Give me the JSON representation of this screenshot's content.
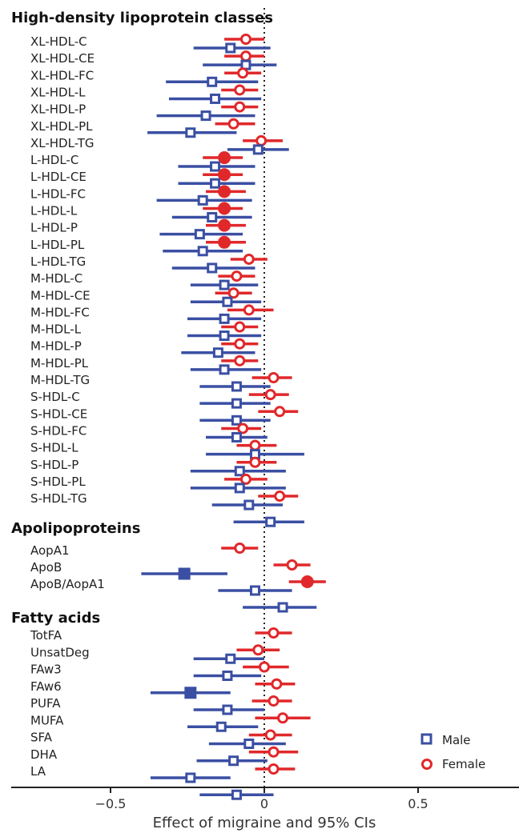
{
  "chart_data": {
    "type": "forest",
    "xlabel": "Effect of migraine and 95% CIs",
    "xlim": [
      -0.82,
      0.82
    ],
    "xticks": [
      -0.5,
      0,
      0.5
    ],
    "xtick_labels": [
      "−0.5",
      "0",
      "0.5"
    ],
    "reference_line": 0,
    "colors": {
      "Male": "#3a4fa3",
      "Female": "#e0282b"
    },
    "legend": {
      "position": "bottom-right",
      "entries": [
        {
          "name": "Male",
          "marker": "square"
        },
        {
          "name": "Female",
          "marker": "circle"
        }
      ]
    },
    "sections": [
      {
        "title": "High-density lipoprotein classes",
        "rows": [
          {
            "label": "XL-HDL-C",
            "male": [
              -0.11,
              -0.23,
              0.02,
              false
            ],
            "female": [
              -0.06,
              -0.13,
              0.0,
              false
            ]
          },
          {
            "label": "XL-HDL-CE",
            "male": [
              -0.06,
              -0.2,
              0.04,
              false
            ],
            "female": [
              -0.06,
              -0.13,
              0.0,
              false
            ]
          },
          {
            "label": "XL-HDL-FC",
            "male": [
              -0.17,
              -0.32,
              -0.02,
              false
            ],
            "female": [
              -0.07,
              -0.13,
              -0.01,
              false
            ]
          },
          {
            "label": "XL-HDL-L",
            "male": [
              -0.16,
              -0.31,
              -0.01,
              false
            ],
            "female": [
              -0.08,
              -0.14,
              -0.02,
              false
            ]
          },
          {
            "label": "XL-HDL-P",
            "male": [
              -0.19,
              -0.35,
              -0.03,
              false
            ],
            "female": [
              -0.08,
              -0.14,
              -0.02,
              false
            ]
          },
          {
            "label": "XL-HDL-PL",
            "male": [
              -0.24,
              -0.38,
              -0.09,
              false
            ],
            "female": [
              -0.1,
              -0.16,
              -0.03,
              false
            ]
          },
          {
            "label": "XL-HDL-TG",
            "male": [
              -0.02,
              -0.12,
              0.08,
              false
            ],
            "female": [
              -0.01,
              -0.07,
              0.06,
              false
            ]
          },
          {
            "label": "L-HDL-C",
            "male": [
              -0.16,
              -0.28,
              -0.03,
              false
            ],
            "female": [
              -0.13,
              -0.2,
              -0.07,
              true
            ]
          },
          {
            "label": "L-HDL-CE",
            "male": [
              -0.16,
              -0.28,
              -0.03,
              false
            ],
            "female": [
              -0.13,
              -0.2,
              -0.07,
              true
            ]
          },
          {
            "label": "L-HDL-FC",
            "male": [
              -0.2,
              -0.35,
              -0.04,
              false
            ],
            "female": [
              -0.13,
              -0.19,
              -0.06,
              true
            ]
          },
          {
            "label": "L-HDL-L",
            "male": [
              -0.17,
              -0.3,
              -0.04,
              false
            ],
            "female": [
              -0.13,
              -0.2,
              -0.07,
              true
            ]
          },
          {
            "label": "L-HDL-P",
            "male": [
              -0.21,
              -0.34,
              -0.07,
              false
            ],
            "female": [
              -0.13,
              -0.19,
              -0.06,
              true
            ]
          },
          {
            "label": "L-HDL-PL",
            "male": [
              -0.2,
              -0.33,
              -0.07,
              false
            ],
            "female": [
              -0.13,
              -0.19,
              -0.06,
              true
            ]
          },
          {
            "label": "L-HDL-TG",
            "male": [
              -0.17,
              -0.3,
              -0.03,
              false
            ],
            "female": [
              -0.05,
              -0.11,
              0.01,
              false
            ]
          },
          {
            "label": "M-HDL-C",
            "male": [
              -0.13,
              -0.24,
              -0.02,
              false
            ],
            "female": [
              -0.09,
              -0.15,
              -0.03,
              false
            ]
          },
          {
            "label": "M-HDL-CE",
            "male": [
              -0.12,
              -0.24,
              -0.01,
              false
            ],
            "female": [
              -0.1,
              -0.16,
              -0.04,
              false
            ]
          },
          {
            "label": "M-HDL-FC",
            "male": [
              -0.13,
              -0.25,
              -0.01,
              false
            ],
            "female": [
              -0.05,
              -0.12,
              0.03,
              false
            ]
          },
          {
            "label": "M-HDL-L",
            "male": [
              -0.13,
              -0.25,
              -0.01,
              false
            ],
            "female": [
              -0.08,
              -0.14,
              -0.02,
              false
            ]
          },
          {
            "label": "M-HDL-P",
            "male": [
              -0.15,
              -0.27,
              -0.03,
              false
            ],
            "female": [
              -0.08,
              -0.14,
              -0.02,
              false
            ]
          },
          {
            "label": "M-HDL-PL",
            "male": [
              -0.13,
              -0.24,
              -0.01,
              false
            ],
            "female": [
              -0.08,
              -0.14,
              -0.02,
              false
            ]
          },
          {
            "label": "M-HDL-TG",
            "male": [
              -0.09,
              -0.21,
              0.02,
              false
            ],
            "female": [
              0.03,
              -0.04,
              0.09,
              false
            ]
          },
          {
            "label": "S-HDL-C",
            "male": [
              -0.09,
              -0.21,
              0.02,
              false
            ],
            "female": [
              0.02,
              -0.05,
              0.08,
              false
            ]
          },
          {
            "label": "S-HDL-CE",
            "male": [
              -0.09,
              -0.21,
              0.02,
              false
            ],
            "female": [
              0.05,
              -0.02,
              0.11,
              false
            ]
          },
          {
            "label": "S-HDL-FC",
            "male": [
              -0.09,
              -0.19,
              0.01,
              false
            ],
            "female": [
              -0.07,
              -0.14,
              -0.01,
              false
            ]
          },
          {
            "label": "S-HDL-L",
            "male": [
              -0.03,
              -0.19,
              0.13,
              false
            ],
            "female": [
              -0.03,
              -0.09,
              0.04,
              false
            ]
          },
          {
            "label": "S-HDL-P",
            "male": [
              -0.08,
              -0.24,
              0.07,
              false
            ],
            "female": [
              -0.03,
              -0.09,
              0.04,
              false
            ]
          },
          {
            "label": "S-HDL-PL",
            "male": [
              -0.08,
              -0.24,
              0.07,
              false
            ],
            "female": [
              -0.06,
              -0.13,
              0.01,
              false
            ]
          },
          {
            "label": "S-HDL-TG",
            "male": [
              -0.05,
              -0.17,
              0.06,
              false
            ],
            "female": [
              0.05,
              -0.02,
              0.11,
              false
            ]
          },
          {
            "label": "",
            "male": [
              0.02,
              -0.1,
              0.13,
              false
            ],
            "female": null
          }
        ]
      },
      {
        "title": "Apolipoproteins",
        "rows": [
          {
            "label": "AopA1",
            "male": null,
            "female": [
              -0.08,
              -0.14,
              -0.02,
              false
            ]
          },
          {
            "label": "ApoB",
            "male": [
              -0.26,
              -0.4,
              -0.12,
              true
            ],
            "female": [
              0.09,
              0.03,
              0.15,
              false
            ]
          },
          {
            "label": "ApoB/AopA1",
            "male": [
              -0.03,
              -0.15,
              0.09,
              false
            ],
            "female": [
              0.14,
              0.08,
              0.2,
              true
            ]
          },
          {
            "label": "",
            "male": [
              0.06,
              -0.07,
              0.17,
              false
            ],
            "female": null
          }
        ]
      },
      {
        "title": "Fatty acids",
        "rows": [
          {
            "label": "TotFA",
            "male": null,
            "female": [
              0.03,
              -0.03,
              0.09,
              false
            ]
          },
          {
            "label": "UnsatDeg",
            "male": [
              -0.11,
              -0.23,
              0.0,
              false
            ],
            "female": [
              -0.02,
              -0.09,
              0.05,
              false
            ]
          },
          {
            "label": "FAw3",
            "male": [
              -0.12,
              -0.23,
              -0.01,
              false
            ],
            "female": [
              0.0,
              -0.07,
              0.08,
              false
            ]
          },
          {
            "label": "FAw6",
            "male": [
              -0.24,
              -0.37,
              -0.11,
              true
            ],
            "female": [
              0.04,
              -0.03,
              0.1,
              false
            ]
          },
          {
            "label": "PUFA",
            "male": [
              -0.12,
              -0.23,
              0.0,
              false
            ],
            "female": [
              0.03,
              -0.04,
              0.09,
              false
            ]
          },
          {
            "label": "MUFA",
            "male": [
              -0.14,
              -0.25,
              -0.02,
              false
            ],
            "female": [
              0.06,
              -0.03,
              0.15,
              false
            ]
          },
          {
            "label": "SFA",
            "male": [
              -0.05,
              -0.18,
              0.07,
              false
            ],
            "female": [
              0.02,
              -0.05,
              0.09,
              false
            ]
          },
          {
            "label": "DHA",
            "male": [
              -0.1,
              -0.22,
              0.01,
              false
            ],
            "female": [
              0.03,
              -0.05,
              0.11,
              false
            ]
          },
          {
            "label": "LA",
            "male": [
              -0.24,
              -0.37,
              -0.11,
              false
            ],
            "female": [
              0.03,
              -0.03,
              0.1,
              false
            ]
          },
          {
            "label": "",
            "male": [
              -0.09,
              -0.21,
              0.03,
              false
            ],
            "female": null
          }
        ]
      }
    ]
  }
}
